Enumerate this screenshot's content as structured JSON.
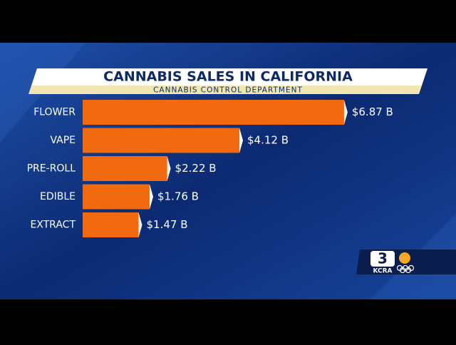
{
  "chart_data": {
    "type": "bar",
    "orientation": "horizontal",
    "title": "CANNABIS SALES IN CALIFORNIA",
    "subtitle": "CANNABIS CONTROL DEPARTMENT",
    "categories": [
      "FLOWER",
      "VAPE",
      "PRE-ROLL",
      "EDIBLE",
      "EXTRACT"
    ],
    "values": [
      6.87,
      4.12,
      2.22,
      1.76,
      1.47
    ],
    "value_labels": [
      "$6.87 B",
      "$4.12 B",
      "$2.22 B",
      "$1.76 B",
      "$1.47 B"
    ],
    "color": "#f26a10"
  },
  "logo": {
    "channel": "3",
    "station": "KCRA"
  }
}
